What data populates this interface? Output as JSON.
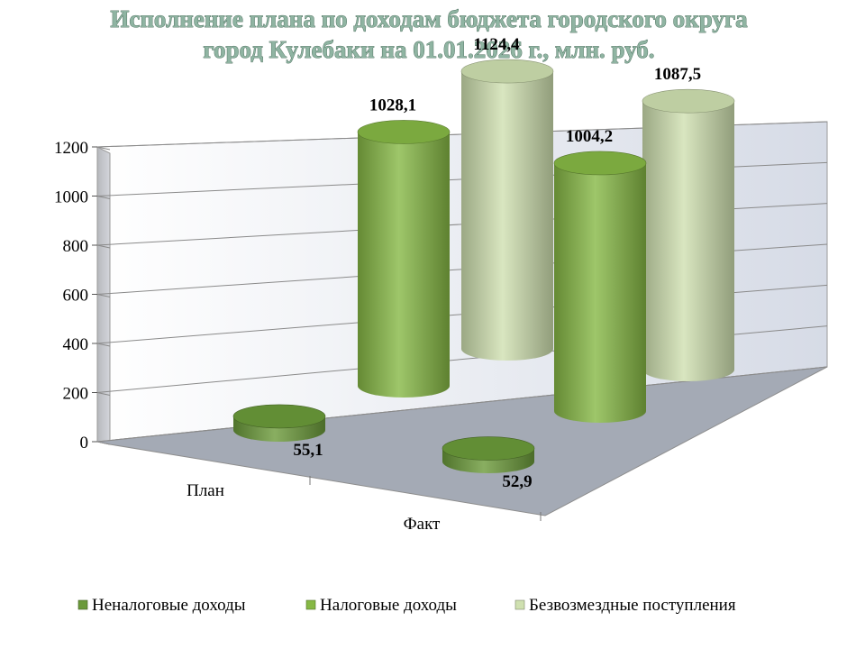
{
  "chart_data": {
    "type": "bar",
    "subtype": "3d-cylinder",
    "title_lines": [
      "Исполнение плана по доходам бюджета городского округа",
      "город Кулебаки на 01.01.2026 г., млн. руб."
    ],
    "categories": [
      "План",
      "Факт"
    ],
    "series": [
      {
        "name": "Неналоговые доходы",
        "values": [
          55.1,
          52.9
        ],
        "labels": [
          "55,1",
          "52,9"
        ],
        "color": "#6b9a3a"
      },
      {
        "name": "Налоговые доходы",
        "values": [
          1028.1,
          1004.2
        ],
        "labels": [
          "1028,1",
          "1004,2"
        ],
        "color": "#86b845"
      },
      {
        "name": "Безвозмездные поступления",
        "values": [
          1124.4,
          1087.5
        ],
        "labels": [
          "1124,4",
          "1087,5"
        ],
        "color": "#cfe0b0"
      }
    ],
    "ylim": [
      0,
      1200
    ],
    "yticks": [
      0,
      200,
      400,
      600,
      800,
      1000,
      1200
    ],
    "grid": true,
    "legend": "bottom"
  }
}
